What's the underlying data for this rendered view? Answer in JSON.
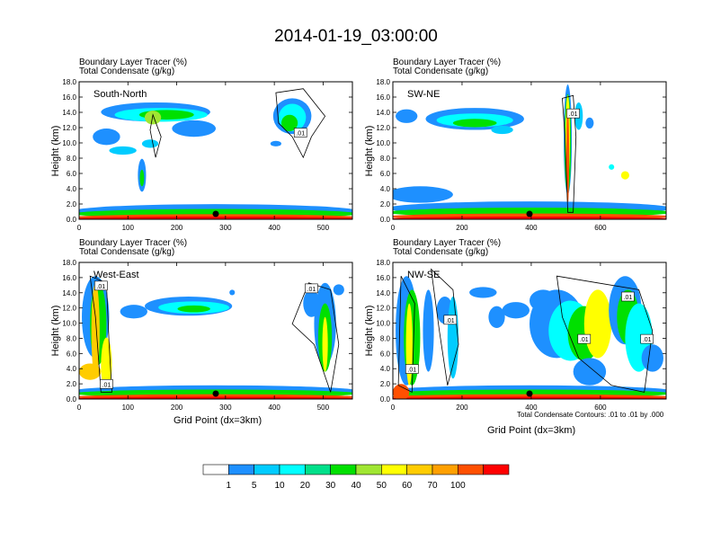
{
  "title": "2014-01-19_03:00:00",
  "field_labels": [
    "Boundary Layer Tracer   (%)",
    "Total Condensate   (g/kg)"
  ],
  "footnote": "Total Condensate Contours: .01 to .01 by .000",
  "colors": [
    "#ffffff",
    "#1e90ff",
    "#00ccff",
    "#00ffff",
    "#00e08a",
    "#00e000",
    "#a0e632",
    "#ffff00",
    "#ffcc00",
    "#ffa000",
    "#ff5000",
    "#ff0000"
  ],
  "colorbar": {
    "levels": [
      "1",
      "5",
      "10",
      "20",
      "30",
      "40",
      "50",
      "60",
      "70",
      "100"
    ]
  },
  "chart_data": [
    {
      "type": "heatmap",
      "name": "South-North",
      "xlim": [
        0,
        560
      ],
      "xticks": [
        "0",
        "100",
        "200",
        "300",
        "400",
        "500"
      ],
      "xlabel": "",
      "ylabel": "Height (km)",
      "ylim": [
        0,
        18
      ],
      "yticks": [
        "0.0",
        "2.0",
        "4.0",
        "6.0",
        "8.0",
        "10.0",
        "12.0",
        "14.0",
        "16.0",
        "18.0"
      ],
      "contour_labels": [
        ".01"
      ]
    },
    {
      "type": "heatmap",
      "name": "SW-NE",
      "xlim": [
        0,
        790
      ],
      "xticks": [
        "0",
        "200",
        "400",
        "600"
      ],
      "xlabel": "",
      "ylabel": "Height (km)",
      "ylim": [
        0,
        18
      ],
      "yticks": [
        "0.0",
        "2.0",
        "4.0",
        "6.0",
        "8.0",
        "10.0",
        "12.0",
        "14.0",
        "16.0",
        "18.0"
      ],
      "contour_labels": [
        ".01"
      ]
    },
    {
      "type": "heatmap",
      "name": "West-East",
      "xlim": [
        0,
        560
      ],
      "xticks": [
        "0",
        "100",
        "200",
        "300",
        "400",
        "500"
      ],
      "xlabel": "Grid Point (dx=3km)",
      "ylabel": "Height (km)",
      "ylim": [
        0,
        18
      ],
      "yticks": [
        "0.0",
        "2.0",
        "4.0",
        "6.0",
        "8.0",
        "10.0",
        "12.0",
        "14.0",
        "16.0",
        "18.0"
      ],
      "contour_labels": [
        ".01",
        ".01",
        ".01"
      ]
    },
    {
      "type": "heatmap",
      "name": "NW-SE",
      "xlim": [
        0,
        790
      ],
      "xticks": [
        "0",
        "200",
        "400",
        "600"
      ],
      "xlabel": "Grid Point (dx=3km)",
      "ylabel": "Height (km)",
      "ylim": [
        0,
        18
      ],
      "yticks": [
        "0.0",
        "2.0",
        "4.0",
        "6.0",
        "8.0",
        "10.0",
        "12.0",
        "14.0",
        "16.0",
        "18.0"
      ],
      "contour_labels": [
        ".01",
        ".01",
        ".01",
        ".01",
        ".01"
      ]
    }
  ]
}
